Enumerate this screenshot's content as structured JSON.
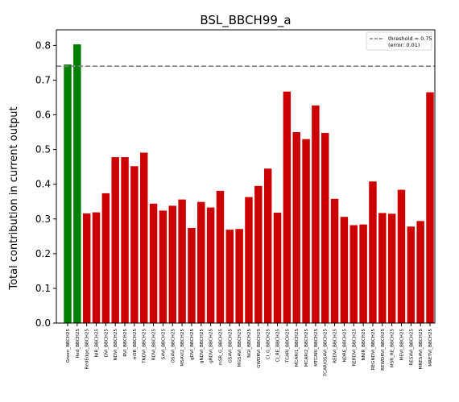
{
  "chart_data": {
    "type": "bar",
    "title": "BSL_BBCH99_a",
    "xlabel": "",
    "ylabel": "Total contribution in current output",
    "ylim": [
      0,
      0.845
    ],
    "yticks": [
      "0.0",
      "0.1",
      "0.2",
      "0.3",
      "0.4",
      "0.5",
      "0.6",
      "0.7",
      "0.8"
    ],
    "grid": false,
    "legend_position": "top-right",
    "threshold": {
      "value": 0.74,
      "legend_line1": "threshold = 0.75",
      "legend_line2": "(error: 0.01)",
      "color": "#808080"
    },
    "colors": {
      "above": "#008000",
      "below": "#cc0000"
    },
    "categories": [
      "Green_BBCH25",
      "Red_BBCH25",
      "RedEdge_BBCH25",
      "NIR_BBCH25",
      "DVI_BBCH25",
      "NDVI_BBCH25",
      "RVI_BBCH25",
      "mSR_BBCH25",
      "TNDVI_BBCH25",
      "RDVI_BBCH25",
      "SAVI_BBCH25",
      "OSAVI_BBCH25",
      "MSAVI2_BBCH25",
      "gDVI_BBCH25",
      "gNDVI_BBCH25",
      "gRDVI_BBCH25",
      "mSR_G_BBCH25",
      "GSAVI_BBCH25",
      "MGSAVI_BBCH25",
      "NGI_BBCH25",
      "GWDRVI_BBCH25",
      "CI_G_BBCH25",
      "CI_RE_BBCH25",
      "TCARI_BBCH25",
      "MCARI1_BBCH25",
      "MCARI2_BBCH25",
      "MTCARI_BBCH25",
      "TCARIOSAVI_BBCH25",
      "REDVI_BBCH25",
      "NDRE_BBCH25",
      "RERDVI_BBCH25",
      "NNIR_BBCH25",
      "REGNDVI_BBCH25",
      "REWDRVI_BBCH25",
      "MSR_RE_BBCH25",
      "MEVI_BBCH25",
      "RESAVI_BBCH25",
      "MRESAVI_BBCH25",
      "MRETVI_BBCH25"
    ],
    "values": [
      0.745,
      0.803,
      0.316,
      0.319,
      0.374,
      0.478,
      0.478,
      0.452,
      0.491,
      0.344,
      0.324,
      0.338,
      0.356,
      0.274,
      0.349,
      0.333,
      0.381,
      0.269,
      0.271,
      0.363,
      0.395,
      0.445,
      0.318,
      0.667,
      0.55,
      0.53,
      0.627,
      0.548,
      0.358,
      0.306,
      0.282,
      0.284,
      0.408,
      0.317,
      0.315,
      0.384,
      0.278,
      0.294,
      0.665
    ],
    "above_threshold_count": 2
  }
}
